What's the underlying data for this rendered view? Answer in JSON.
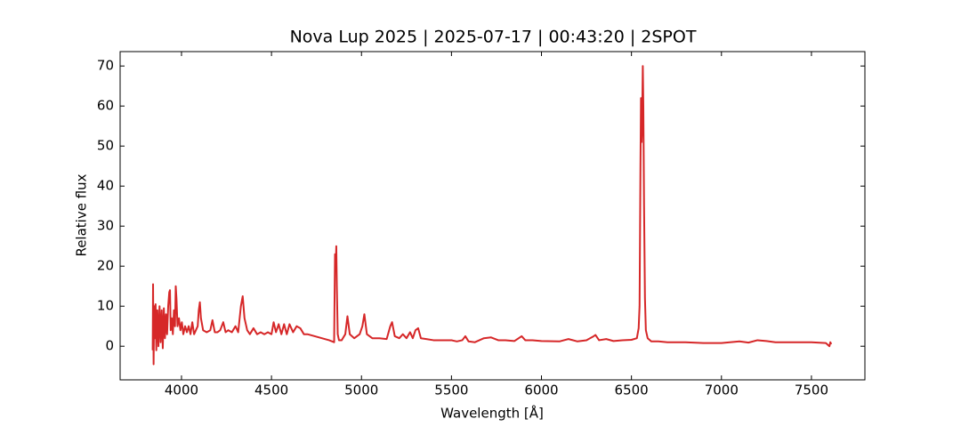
{
  "chart_data": {
    "type": "line",
    "title": "Nova Lup 2025 | 2025-07-17 | 00:43:20 | 2SPOT",
    "xlabel": "Wavelength [Å]",
    "ylabel": "Relative flux",
    "color": "#d62728",
    "xlim": [
      3659,
      7797
    ],
    "ylim": [
      -8.4,
      73.6
    ],
    "xticks": [
      4000,
      4500,
      5000,
      5500,
      6000,
      6500,
      7000,
      7500
    ],
    "yticks": [
      0,
      10,
      20,
      30,
      40,
      50,
      60,
      70
    ],
    "x": [
      3840,
      3842,
      3845,
      3848,
      3852,
      3856,
      3860,
      3866,
      3872,
      3878,
      3884,
      3890,
      3896,
      3902,
      3908,
      3914,
      3920,
      3926,
      3932,
      3936,
      3940,
      3946,
      3952,
      3958,
      3964,
      3968,
      3972,
      3978,
      3986,
      3994,
      4002,
      4010,
      4020,
      4030,
      4040,
      4050,
      4060,
      4070,
      4080,
      4090,
      4096,
      4102,
      4108,
      4120,
      4140,
      4160,
      4172,
      4185,
      4200,
      4215,
      4232,
      4245,
      4260,
      4280,
      4300,
      4315,
      4330,
      4340,
      4350,
      4365,
      4380,
      4400,
      4420,
      4440,
      4460,
      4480,
      4500,
      4512,
      4525,
      4540,
      4555,
      4570,
      4585,
      4600,
      4620,
      4640,
      4660,
      4680,
      4700,
      4740,
      4780,
      4820,
      4848,
      4853,
      4857,
      4860,
      4863,
      4868,
      4875,
      4890,
      4910,
      4922,
      4935,
      4960,
      4990,
      5005,
      5016,
      5030,
      5060,
      5100,
      5140,
      5160,
      5170,
      5185,
      5210,
      5230,
      5250,
      5270,
      5285,
      5300,
      5315,
      5330,
      5360,
      5400,
      5450,
      5500,
      5530,
      5560,
      5577,
      5595,
      5630,
      5680,
      5720,
      5760,
      5800,
      5850,
      5890,
      5910,
      5950,
      6000,
      6100,
      6150,
      6200,
      6250,
      6290,
      6300,
      6320,
      6360,
      6400,
      6450,
      6500,
      6530,
      6540,
      6545,
      6550,
      6553,
      6556,
      6559,
      6563,
      6566,
      6570,
      6575,
      6580,
      6590,
      6610,
      6650,
      6700,
      6800,
      6900,
      7000,
      7100,
      7150,
      7200,
      7250,
      7300,
      7400,
      7500,
      7580,
      7600,
      7605,
      7610
    ],
    "values": [
      -1,
      15.5,
      -4.5,
      10,
      2,
      10.5,
      -1,
      9,
      0,
      10,
      1,
      9,
      -0.5,
      9.5,
      2,
      8,
      3,
      10,
      13.5,
      14,
      4,
      7,
      3,
      9,
      5,
      15,
      12,
      5,
      7,
      4,
      6,
      3,
      5,
      3.5,
      5,
      3,
      6,
      3,
      4,
      5,
      9,
      11,
      7,
      4,
      3.5,
      4,
      6.5,
      3.5,
      3.5,
      4,
      6,
      3.5,
      4,
      3.5,
      5,
      3.5,
      10,
      12.5,
      7,
      4,
      3,
      4.5,
      3,
      3.5,
      3,
      3.5,
      3,
      6,
      3.5,
      5.5,
      3,
      5.5,
      3,
      5.5,
      3.5,
      5,
      4.5,
      3,
      3,
      2.5,
      2,
      1.5,
      1,
      23,
      20,
      25,
      15,
      3,
      1.5,
      1.5,
      3,
      7.5,
      3,
      2,
      3,
      5,
      8,
      3,
      2,
      2,
      1.8,
      5,
      6,
      2.5,
      2,
      3,
      2,
      3.5,
      2,
      4,
      4.5,
      2,
      1.8,
      1.5,
      1.5,
      1.5,
      1.2,
      1.5,
      2.5,
      1.2,
      1,
      2,
      2.2,
      1.5,
      1.5,
      1.3,
      2.5,
      1.5,
      1.5,
      1.3,
      1.2,
      1.8,
      1.2,
      1.5,
      2.5,
      2.8,
      1.5,
      1.8,
      1.3,
      1.5,
      1.6,
      2,
      4.5,
      10,
      45,
      62,
      51,
      55,
      70,
      60,
      35,
      12,
      4,
      2,
      1.2,
      1.2,
      1,
      1,
      0.8,
      0.8,
      1.2,
      0.9,
      1.5,
      1.3,
      1,
      1,
      1,
      0.8,
      0,
      1,
      0.5
    ]
  }
}
